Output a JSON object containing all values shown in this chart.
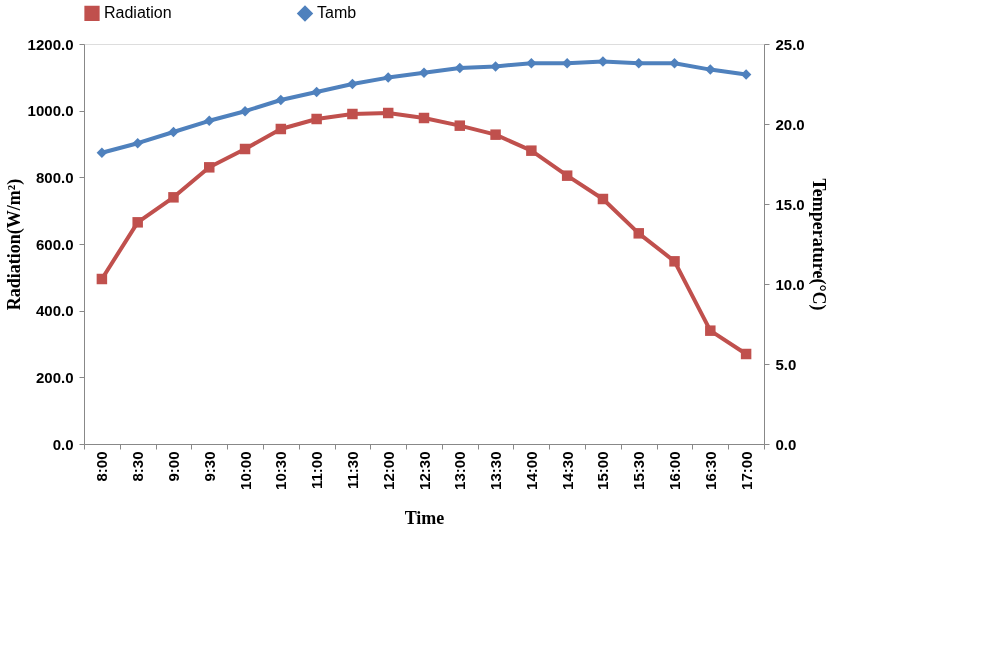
{
  "chart_data": {
    "type": "line",
    "categories": [
      "8:00",
      "8:30",
      "9:00",
      "9:30",
      "10:00",
      "10:30",
      "11:00",
      "11:30",
      "12:00",
      "12:30",
      "13:00",
      "13:30",
      "14:00",
      "14:30",
      "15:00",
      "15:30",
      "16:00",
      "16:30",
      "17:00"
    ],
    "series": [
      {
        "name": "Radiation",
        "color": "#c0504d",
        "marker": "square",
        "values": [
          495,
          665,
          740,
          830,
          885,
          945,
          975,
          990,
          993,
          978,
          955,
          928,
          880,
          805,
          735,
          632,
          548,
          340,
          270
        ]
      },
      {
        "name": "Tamb",
        "color": "#4f81bd",
        "marker": "diamond",
        "axis": "y2",
        "values": [
          18.2,
          18.8,
          19.5,
          20.2,
          20.8,
          21.5,
          22.0,
          22.5,
          22.9,
          23.2,
          23.5,
          23.6,
          23.8,
          23.8,
          23.9,
          23.8,
          23.8,
          23.4,
          23.1
        ]
      }
    ],
    "xlabel": "Time",
    "ylabel": "Radiation(W/m²)",
    "y2label": "Temperature(°C)",
    "ylim": [
      0,
      1200
    ],
    "yticks": [
      {
        "value": 0,
        "label": "0.0"
      },
      {
        "value": 200,
        "label": "200.0"
      },
      {
        "value": 400,
        "label": "400.0"
      },
      {
        "value": 600,
        "label": "600.0"
      },
      {
        "value": 800,
        "label": "800.0"
      },
      {
        "value": 1000,
        "label": "1000.0"
      },
      {
        "value": 1200,
        "label": "1200.0"
      }
    ],
    "y2lim": [
      0,
      25
    ],
    "y2ticks": [
      {
        "value": 0,
        "label": "0.0"
      },
      {
        "value": 5,
        "label": "5.0"
      },
      {
        "value": 10,
        "label": "10.0"
      },
      {
        "value": 15,
        "label": "15.0"
      },
      {
        "value": 20,
        "label": "20.0"
      },
      {
        "value": 25,
        "label": "25.0"
      }
    ],
    "legend": "top",
    "grid": false,
    "line_style": "solid"
  }
}
